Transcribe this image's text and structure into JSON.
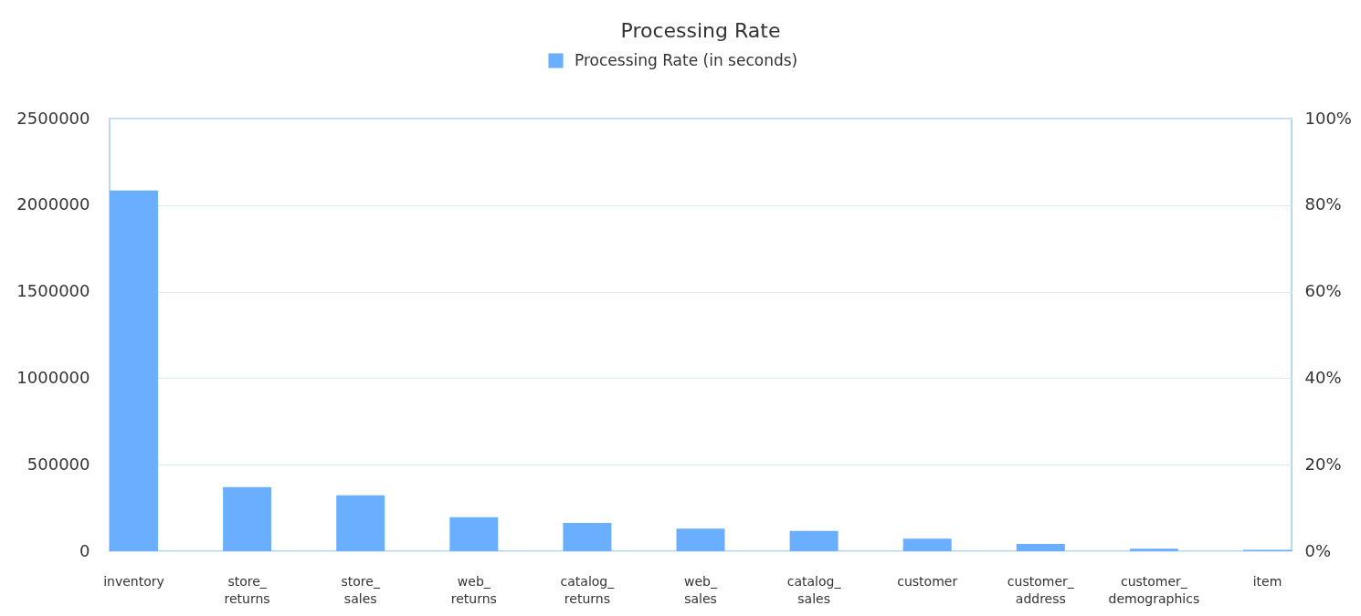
{
  "chart_data": {
    "type": "bar",
    "title": "Processing Rate",
    "categories": [
      "inventory",
      "store_returns",
      "store_sales",
      "web_returns",
      "catalog_returns",
      "web_sales",
      "catalog_sales",
      "customer",
      "customer_address",
      "customer_demographics",
      "item"
    ],
    "series": [
      {
        "name": "Processing Rate (in seconds)",
        "color": "#6aaeff",
        "values": [
          2085000,
          371000,
          323000,
          197000,
          163000,
          131000,
          117000,
          72000,
          42000,
          14000,
          8000
        ]
      }
    ],
    "ylim": [
      0,
      2500000
    ],
    "yticks": [
      0,
      500000,
      1000000,
      1500000,
      2000000,
      2500000
    ],
    "y2lim": [
      0,
      100
    ],
    "y2ticks": [
      {
        "value": 0,
        "label": "0%"
      },
      {
        "value": 20,
        "label": "20%"
      },
      {
        "value": 40,
        "label": "40%"
      },
      {
        "value": 60,
        "label": "60%"
      },
      {
        "value": 80,
        "label": "80%"
      },
      {
        "value": 100,
        "label": "100%"
      }
    ],
    "grid": "y",
    "legend": "top"
  }
}
